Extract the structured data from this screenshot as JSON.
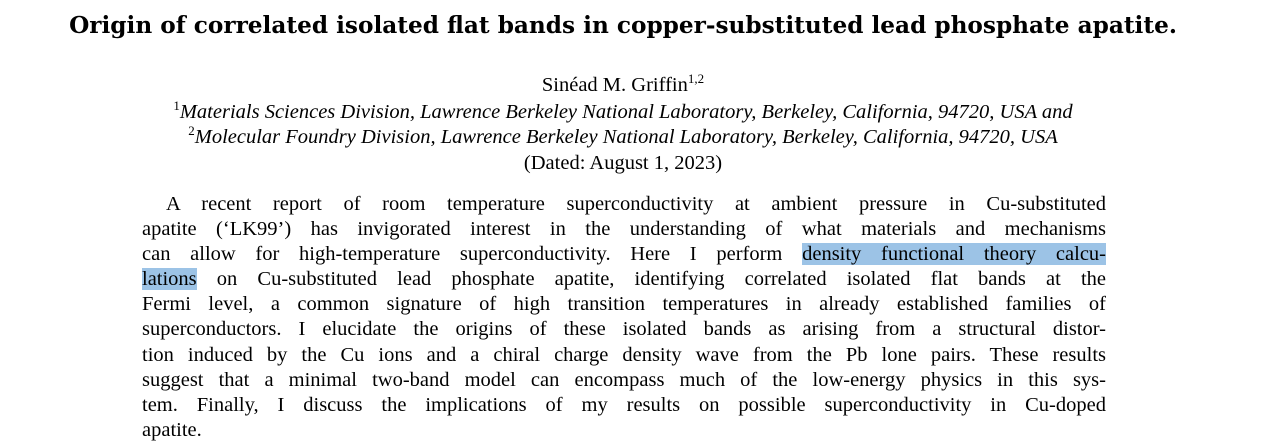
{
  "paper": {
    "title": "Origin of correlated isolated flat bands in copper-substituted lead phosphate apatite.",
    "author": {
      "name": "Sinéad M. Griffin",
      "affil_marks": "1,2"
    },
    "affiliations": [
      {
        "mark": "1",
        "text": "Materials Sciences Division, Lawrence Berkeley National Laboratory, Berkeley, California, 94720, USA and"
      },
      {
        "mark": "2",
        "text": "Molecular Foundry Division, Lawrence Berkeley National Laboratory, Berkeley, California, 94720, USA"
      }
    ],
    "dated": "(Dated: August 1, 2023)",
    "abstract_lines": [
      "A recent report of room temperature superconductivity at ambient pressure in Cu-substituted",
      "apatite (‘LK99’) has invigorated interest in the understanding of what materials and mechanisms",
      "can allow for high-temperature superconductivity. Here I perform ",
      "density functional theory calcu-",
      "lations",
      " on Cu-substituted lead phosphate apatite, identifying correlated isolated flat bands at the",
      "Fermi level, a common signature of high transition temperatures in already established families of",
      "superconductors. I elucidate the origins of these isolated bands as arising from a structural distor-",
      "tion induced by the Cu ions and a chiral charge density wave from the Pb lone pairs. These results",
      "suggest that a minimal two-band model can encompass much of the low-energy physics in this sys-",
      "tem. Finally, I discuss the implications of my results on possible superconductivity in Cu-doped",
      "apatite."
    ],
    "selection_color": "#9cc3e6"
  }
}
